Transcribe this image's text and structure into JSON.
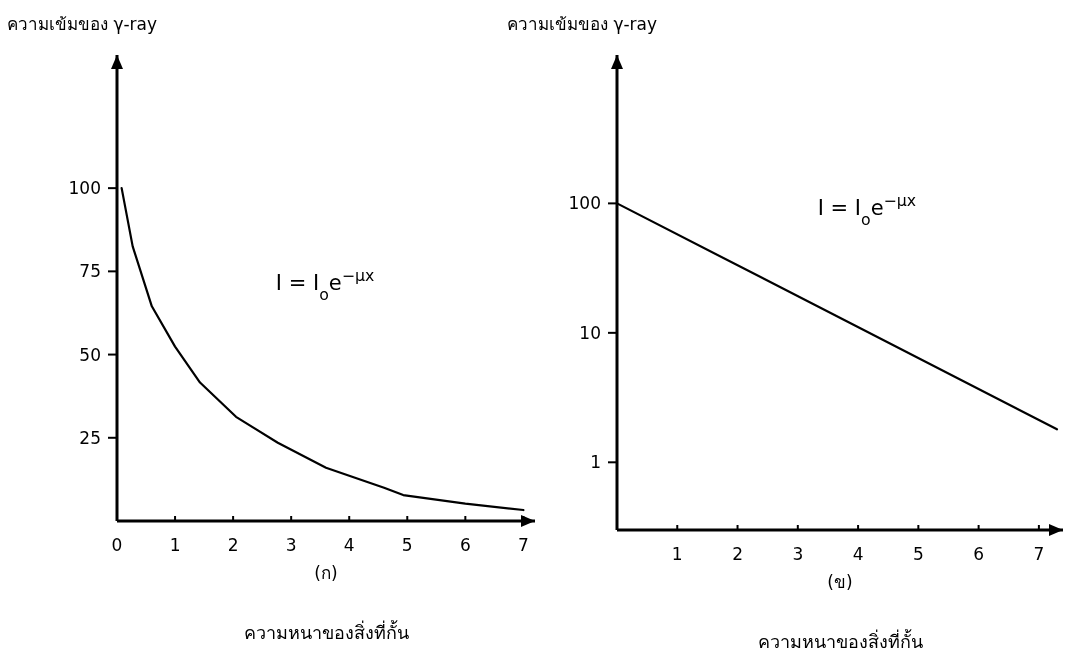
{
  "chart_data": [
    {
      "type": "line",
      "title": "(ก)",
      "xlabel": "ความหนาของสิ่งที่กั้น",
      "ylabel": "ความเข้มของ γ-ray",
      "annotations": [
        "I = I$_{o}$e$^{−μx}$"
      ],
      "series": [
        {
          "color": "#000000",
          "x": [
            0.08,
            0.27,
            0.6,
            1.0,
            1.43,
            2.05,
            2.77,
            3.6,
            4.6,
            4.93,
            6.0,
            7.0
          ],
          "values": [
            100,
            82.5,
            64.5,
            52.4,
            41.6,
            31.3,
            23.5,
            16,
            10,
            7.8,
            5.2,
            3.3
          ]
        }
      ],
      "xlim": [
        0,
        7.2
      ],
      "ylim": [
        0,
        140
      ],
      "xticks": [
        0,
        1,
        2,
        3,
        4,
        5,
        6,
        7
      ],
      "yticks": [
        25,
        50,
        75,
        100
      ],
      "grid": false,
      "marker": "none",
      "line_style": "solid"
    },
    {
      "type": "line",
      "title": "(ข)",
      "xlabel": "ความหนาของสิ่งที่กั้น",
      "ylabel": "ความเข้มของ γ-ray",
      "annotations": [
        "I = I$_{o}$e$^{−μx}$"
      ],
      "series": [
        {
          "color": "#000000",
          "x": [
            0,
            7.3
          ],
          "values": [
            100,
            1.8
          ]
        }
      ],
      "xlim": [
        0,
        7.4
      ],
      "ylim": [
        0.3,
        1400
      ],
      "log": true,
      "xticks": [
        1,
        2,
        3,
        4,
        5,
        6,
        7
      ],
      "yticks": [
        1,
        10,
        100
      ],
      "grid": false,
      "marker": "none",
      "line_style": "solid"
    }
  ]
}
